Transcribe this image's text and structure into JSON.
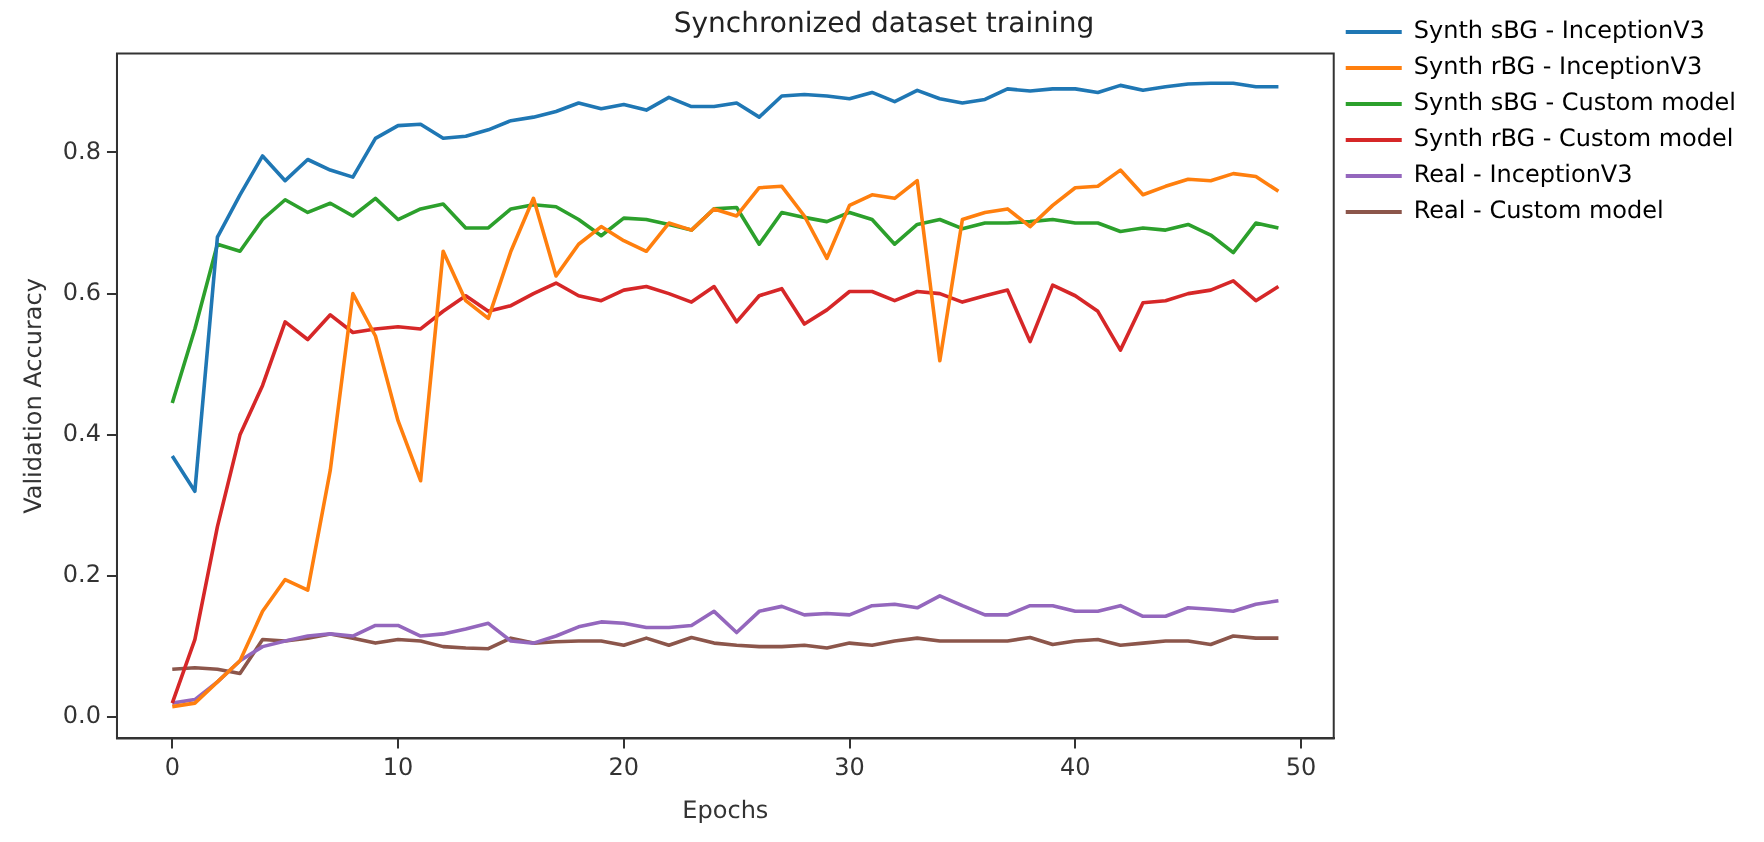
{
  "chart_data": {
    "type": "line",
    "title": "Synchronized dataset training",
    "xlabel": "Epochs",
    "ylabel": "Validation Accuracy",
    "x": [
      0,
      1,
      2,
      3,
      4,
      5,
      6,
      7,
      8,
      9,
      10,
      11,
      12,
      13,
      14,
      15,
      16,
      17,
      18,
      19,
      20,
      21,
      22,
      23,
      24,
      25,
      26,
      27,
      28,
      29,
      30,
      31,
      32,
      33,
      34,
      35,
      36,
      37,
      38,
      39,
      40,
      41,
      42,
      43,
      44,
      45,
      46,
      47,
      48,
      49
    ],
    "xlim": [
      -2.45,
      51.45
    ],
    "xticks": [
      0,
      10,
      20,
      30,
      40,
      50
    ],
    "ylim": [
      -0.03,
      0.94
    ],
    "yticks": [
      {
        "value": 0,
        "label": "0.0"
      },
      0.2,
      0.4,
      0.6,
      0.8
    ],
    "legend": "right",
    "grid": false,
    "marker": "none",
    "line_style": "solid",
    "series": [
      {
        "name": "Synth sBG - InceptionV3",
        "color": "#1f77b4",
        "values": [
          0.37,
          0.32,
          0.68,
          0.74,
          0.795,
          0.76,
          0.79,
          0.775,
          0.765,
          0.82,
          0.838,
          0.84,
          0.82,
          0.823,
          0.832,
          0.845,
          0.85,
          0.858,
          0.87,
          0.862,
          0.868,
          0.86,
          0.878,
          0.865,
          0.865,
          0.87,
          0.85,
          0.88,
          0.882,
          0.88,
          0.876,
          0.885,
          0.872,
          0.888,
          0.876,
          0.87,
          0.875,
          0.89,
          0.887,
          0.89,
          0.89,
          0.885,
          0.895,
          0.888,
          0.893,
          0.897,
          0.898,
          0.898,
          0.893,
          0.893
        ]
      },
      {
        "name": "Synth rBG - InceptionV3",
        "color": "#ff7f0e",
        "values": [
          0.015,
          0.02,
          0.05,
          0.08,
          0.15,
          0.195,
          0.18,
          0.35,
          0.6,
          0.54,
          0.42,
          0.335,
          0.66,
          0.59,
          0.565,
          0.66,
          0.735,
          0.625,
          0.67,
          0.695,
          0.675,
          0.66,
          0.7,
          0.69,
          0.72,
          0.71,
          0.75,
          0.752,
          0.71,
          0.65,
          0.725,
          0.74,
          0.735,
          0.76,
          0.505,
          0.705,
          0.715,
          0.72,
          0.695,
          0.725,
          0.75,
          0.752,
          0.775,
          0.74,
          0.752,
          0.762,
          0.76,
          0.77,
          0.766,
          0.745
        ]
      },
      {
        "name": "Synth sBG - Custom model",
        "color": "#2ca02c",
        "values": [
          0.445,
          0.55,
          0.67,
          0.66,
          0.705,
          0.733,
          0.715,
          0.728,
          0.71,
          0.735,
          0.705,
          0.72,
          0.727,
          0.693,
          0.693,
          0.72,
          0.726,
          0.723,
          0.705,
          0.682,
          0.707,
          0.705,
          0.698,
          0.69,
          0.72,
          0.722,
          0.67,
          0.715,
          0.708,
          0.702,
          0.715,
          0.705,
          0.67,
          0.698,
          0.705,
          0.692,
          0.7,
          0.7,
          0.702,
          0.705,
          0.7,
          0.7,
          0.688,
          0.693,
          0.69,
          0.698,
          0.683,
          0.658,
          0.7,
          0.693
        ]
      },
      {
        "name": "Synth rBG - Custom model",
        "color": "#d62728",
        "values": [
          0.02,
          0.11,
          0.27,
          0.4,
          0.47,
          0.56,
          0.535,
          0.57,
          0.545,
          0.55,
          0.553,
          0.55,
          0.575,
          0.597,
          0.575,
          0.583,
          0.6,
          0.615,
          0.597,
          0.59,
          0.605,
          0.61,
          0.6,
          0.588,
          0.61,
          0.56,
          0.597,
          0.607,
          0.557,
          0.577,
          0.603,
          0.603,
          0.59,
          0.603,
          0.6,
          0.588,
          0.597,
          0.605,
          0.532,
          0.612,
          0.597,
          0.575,
          0.52,
          0.587,
          0.59,
          0.6,
          0.605,
          0.618,
          0.59,
          0.61
        ]
      },
      {
        "name": "Real - InceptionV3",
        "color": "#9467bd",
        "values": [
          0.02,
          0.025,
          0.05,
          0.08,
          0.1,
          0.108,
          0.115,
          0.118,
          0.115,
          0.13,
          0.13,
          0.115,
          0.118,
          0.125,
          0.133,
          0.108,
          0.105,
          0.115,
          0.128,
          0.135,
          0.133,
          0.127,
          0.127,
          0.13,
          0.15,
          0.12,
          0.15,
          0.157,
          0.145,
          0.147,
          0.145,
          0.158,
          0.16,
          0.155,
          0.172,
          0.158,
          0.145,
          0.145,
          0.158,
          0.158,
          0.15,
          0.15,
          0.158,
          0.143,
          0.143,
          0.155,
          0.153,
          0.15,
          0.16,
          0.165
        ]
      },
      {
        "name": "Real - Custom model",
        "color": "#8c564b",
        "values": [
          0.068,
          0.07,
          0.068,
          0.062,
          0.11,
          0.108,
          0.112,
          0.118,
          0.112,
          0.105,
          0.11,
          0.108,
          0.1,
          0.098,
          0.097,
          0.112,
          0.105,
          0.107,
          0.108,
          0.108,
          0.102,
          0.112,
          0.102,
          0.113,
          0.105,
          0.102,
          0.1,
          0.1,
          0.102,
          0.098,
          0.105,
          0.102,
          0.108,
          0.112,
          0.108,
          0.108,
          0.108,
          0.108,
          0.113,
          0.103,
          0.108,
          0.11,
          0.102,
          0.105,
          0.108,
          0.108,
          0.103,
          0.115,
          0.112,
          0.112
        ]
      }
    ]
  }
}
